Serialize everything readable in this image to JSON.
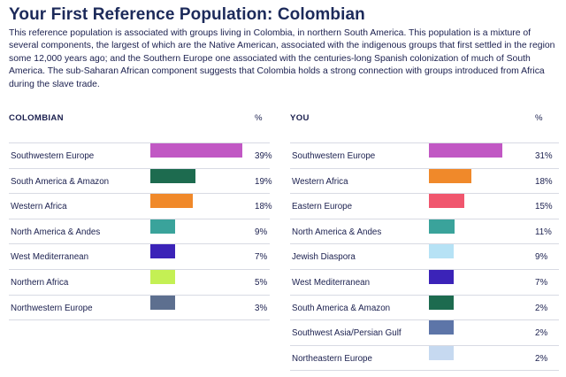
{
  "header": {
    "title": "Your First Reference Population: Colombian",
    "description": "This reference population is associated with groups living in Colombia, in northern South America. This population is a mixture of several components, the largest of which are the Native American, associated with the indigenous groups that first settled in the region some 12,000 years ago; and the Southern Europe one associated with the centuries-long Spanish colonization of much of South America. The sub-Saharan African component suggests that Colombia holds a strong connection with groups introduced from Africa during the slave trade."
  },
  "colombian": {
    "heading": "COLOMBIAN",
    "pct_heading": "%",
    "rows": [
      {
        "label": "Southwestern Europe",
        "value": 39,
        "value_text": "39%",
        "color": "#c158c4"
      },
      {
        "label": "South America & Amazon",
        "value": 19,
        "value_text": "19%",
        "color": "#1d6b4f"
      },
      {
        "label": "Western Africa",
        "value": 18,
        "value_text": "18%",
        "color": "#f0892a"
      },
      {
        "label": "North America & Andes",
        "value": 9,
        "value_text": "9%",
        "color": "#3aa39b"
      },
      {
        "label": "West Mediterranean",
        "value": 7,
        "value_text": "7%",
        "color": "#3b23b8"
      },
      {
        "label": "Northern Africa",
        "value": 5,
        "value_text": "5%",
        "color": "#c4f054"
      },
      {
        "label": "Northwestern Europe",
        "value": 3,
        "value_text": "3%",
        "color": "#5d6f8f"
      }
    ]
  },
  "you": {
    "heading": "YOU",
    "pct_heading": "%",
    "rows": [
      {
        "label": "Southwestern Europe",
        "value": 31,
        "value_text": "31%",
        "color": "#c158c4"
      },
      {
        "label": "Western Africa",
        "value": 18,
        "value_text": "18%",
        "color": "#f0892a"
      },
      {
        "label": "Eastern Europe",
        "value": 15,
        "value_text": "15%",
        "color": "#f0566e"
      },
      {
        "label": "North America & Andes",
        "value": 11,
        "value_text": "11%",
        "color": "#3aa39b"
      },
      {
        "label": "Jewish Diaspora",
        "value": 9,
        "value_text": "9%",
        "color": "#b6e2f5"
      },
      {
        "label": "West Mediterranean",
        "value": 7,
        "value_text": "7%",
        "color": "#3b23b8"
      },
      {
        "label": "South America & Amazon",
        "value": 2,
        "value_text": "2%",
        "color": "#1d6b4f"
      },
      {
        "label": "Southwest Asia/Persian Gulf",
        "value": 2,
        "value_text": "2%",
        "color": "#5d75a8"
      },
      {
        "label": "Northeastern Europe",
        "value": 2,
        "value_text": "2%",
        "color": "#c6d9f0"
      }
    ]
  }
}
